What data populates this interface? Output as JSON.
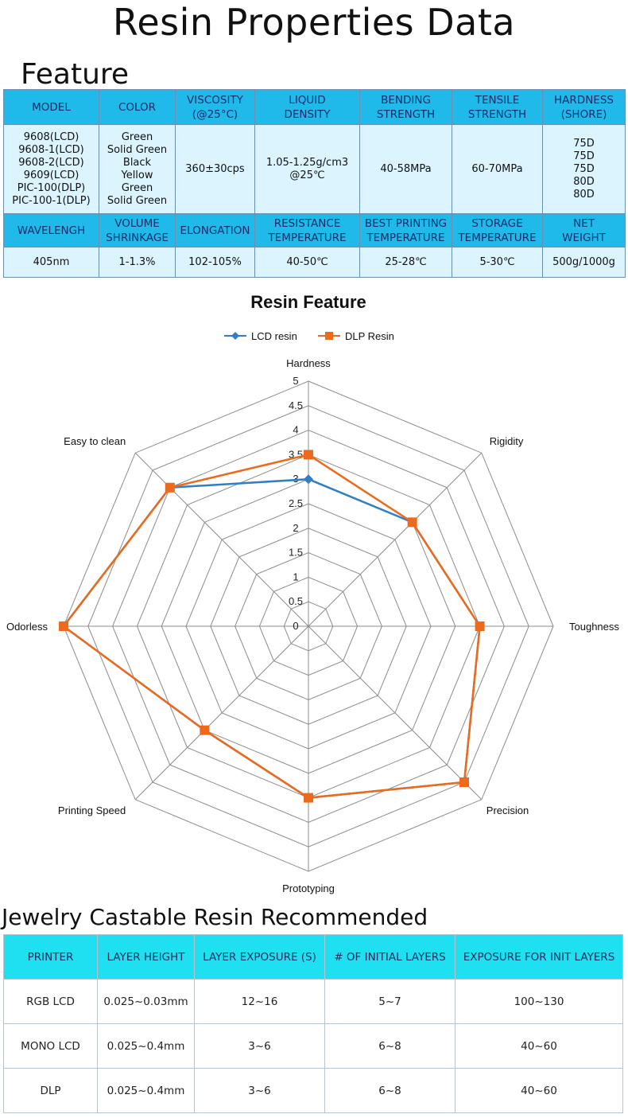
{
  "title": "Resin Properties Data",
  "feature_section": {
    "title": "Feature",
    "row1_headers": [
      "MODEL",
      "COLOR",
      "VISCOSITY\n(@25°C)",
      "LIQUID\nDENSITY",
      "BENDING\nSTRENGTH",
      "TENSILE\nSTRENGTH",
      "HARDNESS\n(SHORE)"
    ],
    "row1_values": [
      "9608(LCD)\n9608-1(LCD)\n9608-2(LCD)\n9609(LCD)\nPIC-100(DLP)\nPIC-100-1(DLP)",
      "Green\nSolid Green\nBlack\nYellow\nGreen\nSolid Green",
      "360±30cps",
      "1.05-1.25g/cm3\n@25℃",
      "40-58MPa",
      "60-70MPa",
      "75D\n75D\n75D\n80D\n80D"
    ],
    "row2_headers": [
      "WAVELENGH",
      "VOLUME\nSHRINKAGE",
      "ELONGATION",
      "RESISTANCE\nTEMPERATURE",
      "BEST PRINTING\nTEMPERATURE",
      "STORAGE\nTEMPERATURE",
      "NET\nWEIGHT"
    ],
    "row2_values": [
      "405nm",
      "1-1.3%",
      "102-105%",
      "40-50℃",
      "25-28℃",
      "5-30℃",
      "500g/1000g"
    ]
  },
  "chart_data": {
    "type": "radar",
    "title": "Resin Feature",
    "axes": [
      "Hardness",
      "Rigidity",
      "Toughness",
      "Precision",
      "Prototyping",
      "Printing Speed",
      "Odorless",
      "Easy to clean"
    ],
    "rlim": [
      0,
      5
    ],
    "ticks": [
      "0",
      "0.5",
      "1",
      "1.5",
      "2",
      "2.5",
      "3",
      "3.5",
      "4",
      "4.5",
      "5"
    ],
    "legend_position": "top-center",
    "series": [
      {
        "name": "LCD resin",
        "color": "#2e7fc4",
        "marker": "diamond",
        "values": [
          3,
          3,
          3.5,
          4.5,
          3.5,
          3,
          5,
          4
        ]
      },
      {
        "name": "DLP Resin",
        "color": "#ee6a1a",
        "marker": "square",
        "values": [
          3.5,
          3,
          3.5,
          4.5,
          3.5,
          3,
          5,
          4
        ]
      }
    ]
  },
  "jewelry_section": {
    "title": "Jewelry Castable Resin Recommended",
    "headers": [
      "PRINTER",
      "LAYER HEIGHT",
      "LAYER EXPOSURE (S)",
      "# OF INITIAL LAYERS",
      "EXPOSURE FOR INIT LAYERS"
    ],
    "rows": [
      [
        "RGB LCD",
        "0.025~0.03mm",
        "12~16",
        "5~7",
        "100~130"
      ],
      [
        "MONO LCD",
        "0.025~0.4mm",
        "3~6",
        "6~8",
        "40~60"
      ],
      [
        "DLP",
        "0.025~0.4mm",
        "3~6",
        "6~8",
        "40~60"
      ]
    ]
  }
}
